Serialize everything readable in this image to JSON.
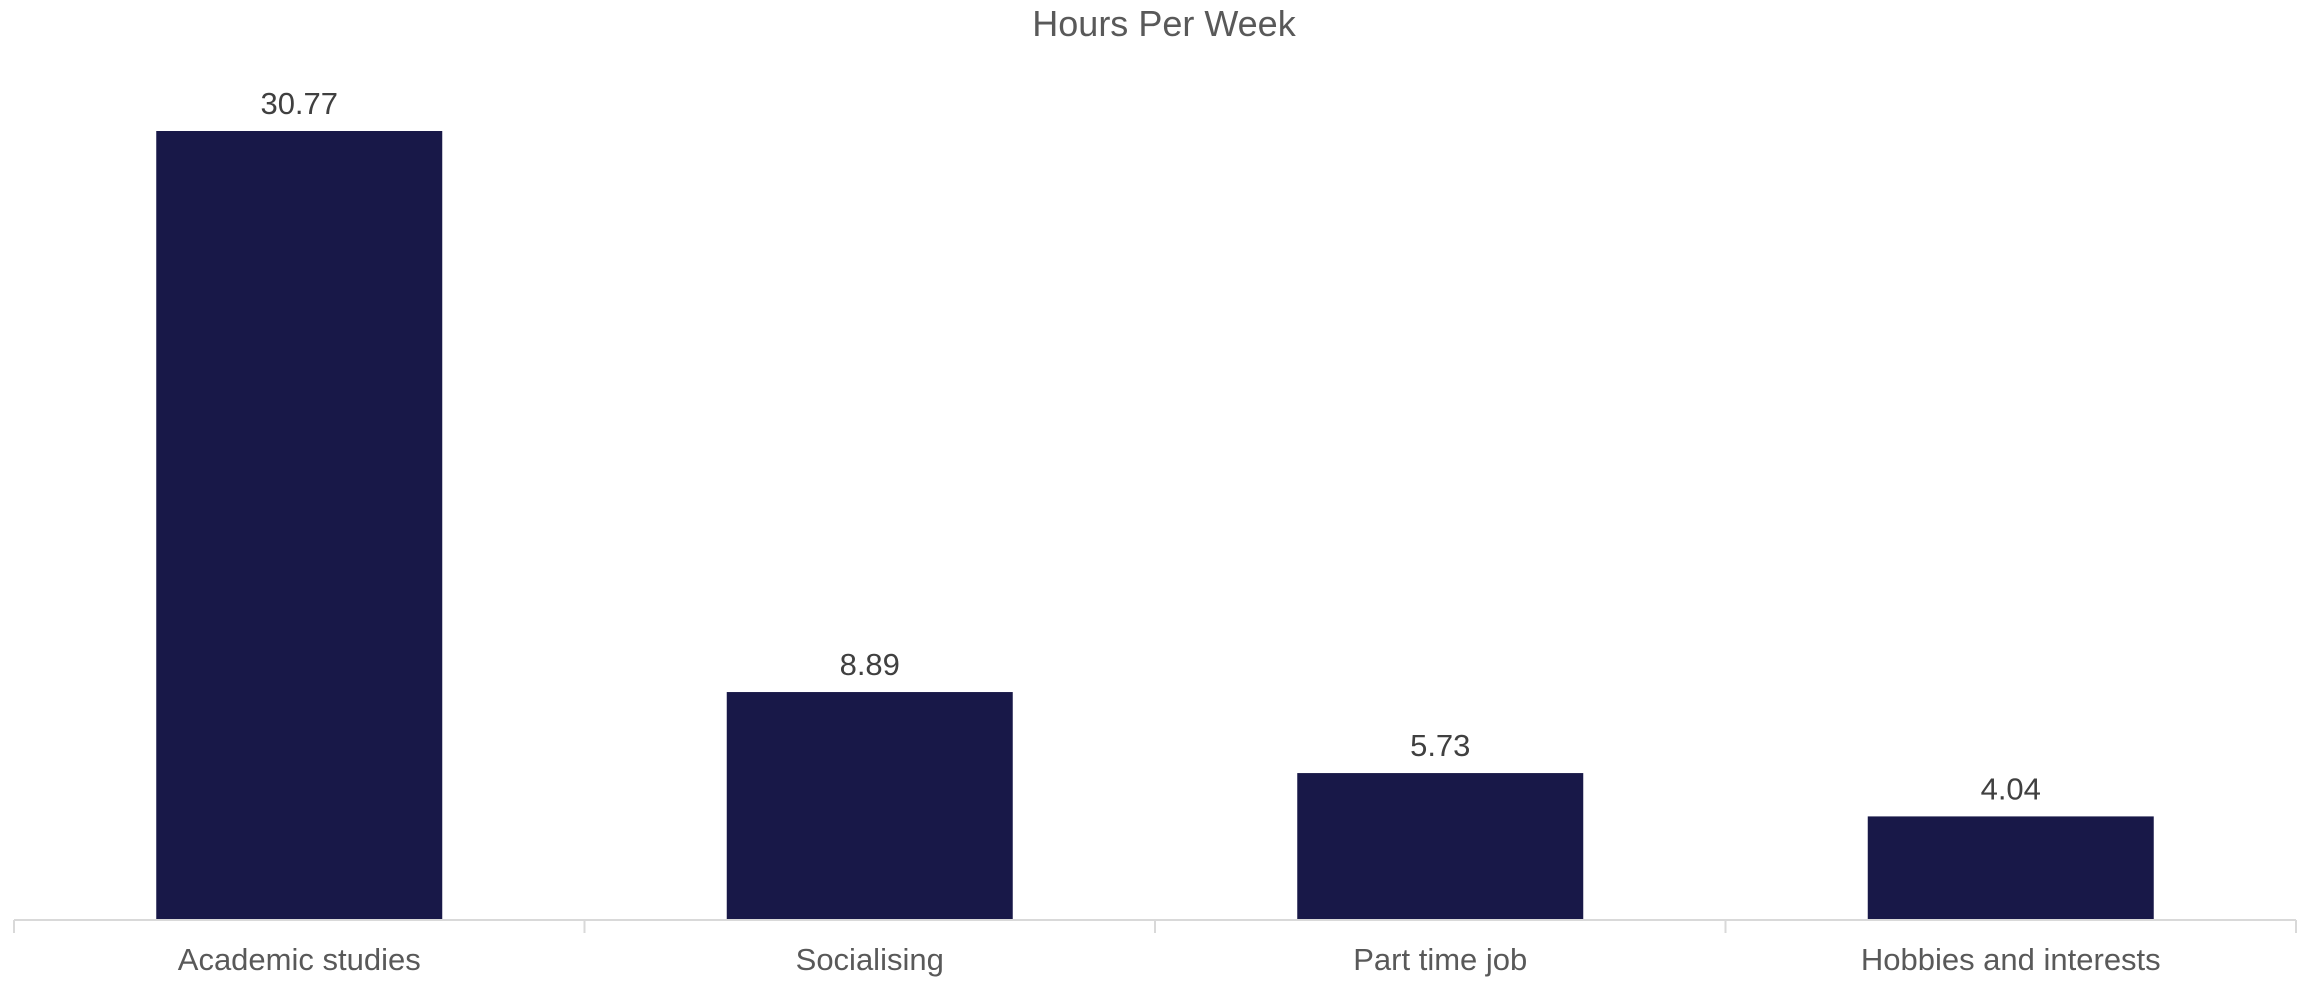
{
  "chart_data": {
    "type": "bar",
    "title": "Hours Per Week",
    "categories": [
      "Academic studies",
      "Socialising",
      "Part time job",
      "Hobbies and interests"
    ],
    "values": [
      30.77,
      8.89,
      5.73,
      4.04
    ],
    "value_labels": [
      "30.77",
      "8.89",
      "5.73",
      "4.04"
    ],
    "xlabel": "",
    "ylabel": "",
    "ylim": [
      0,
      30.77
    ],
    "grid": false,
    "legend": "none",
    "bar_color": "#181848",
    "axis_color": "#d9d9d9"
  }
}
